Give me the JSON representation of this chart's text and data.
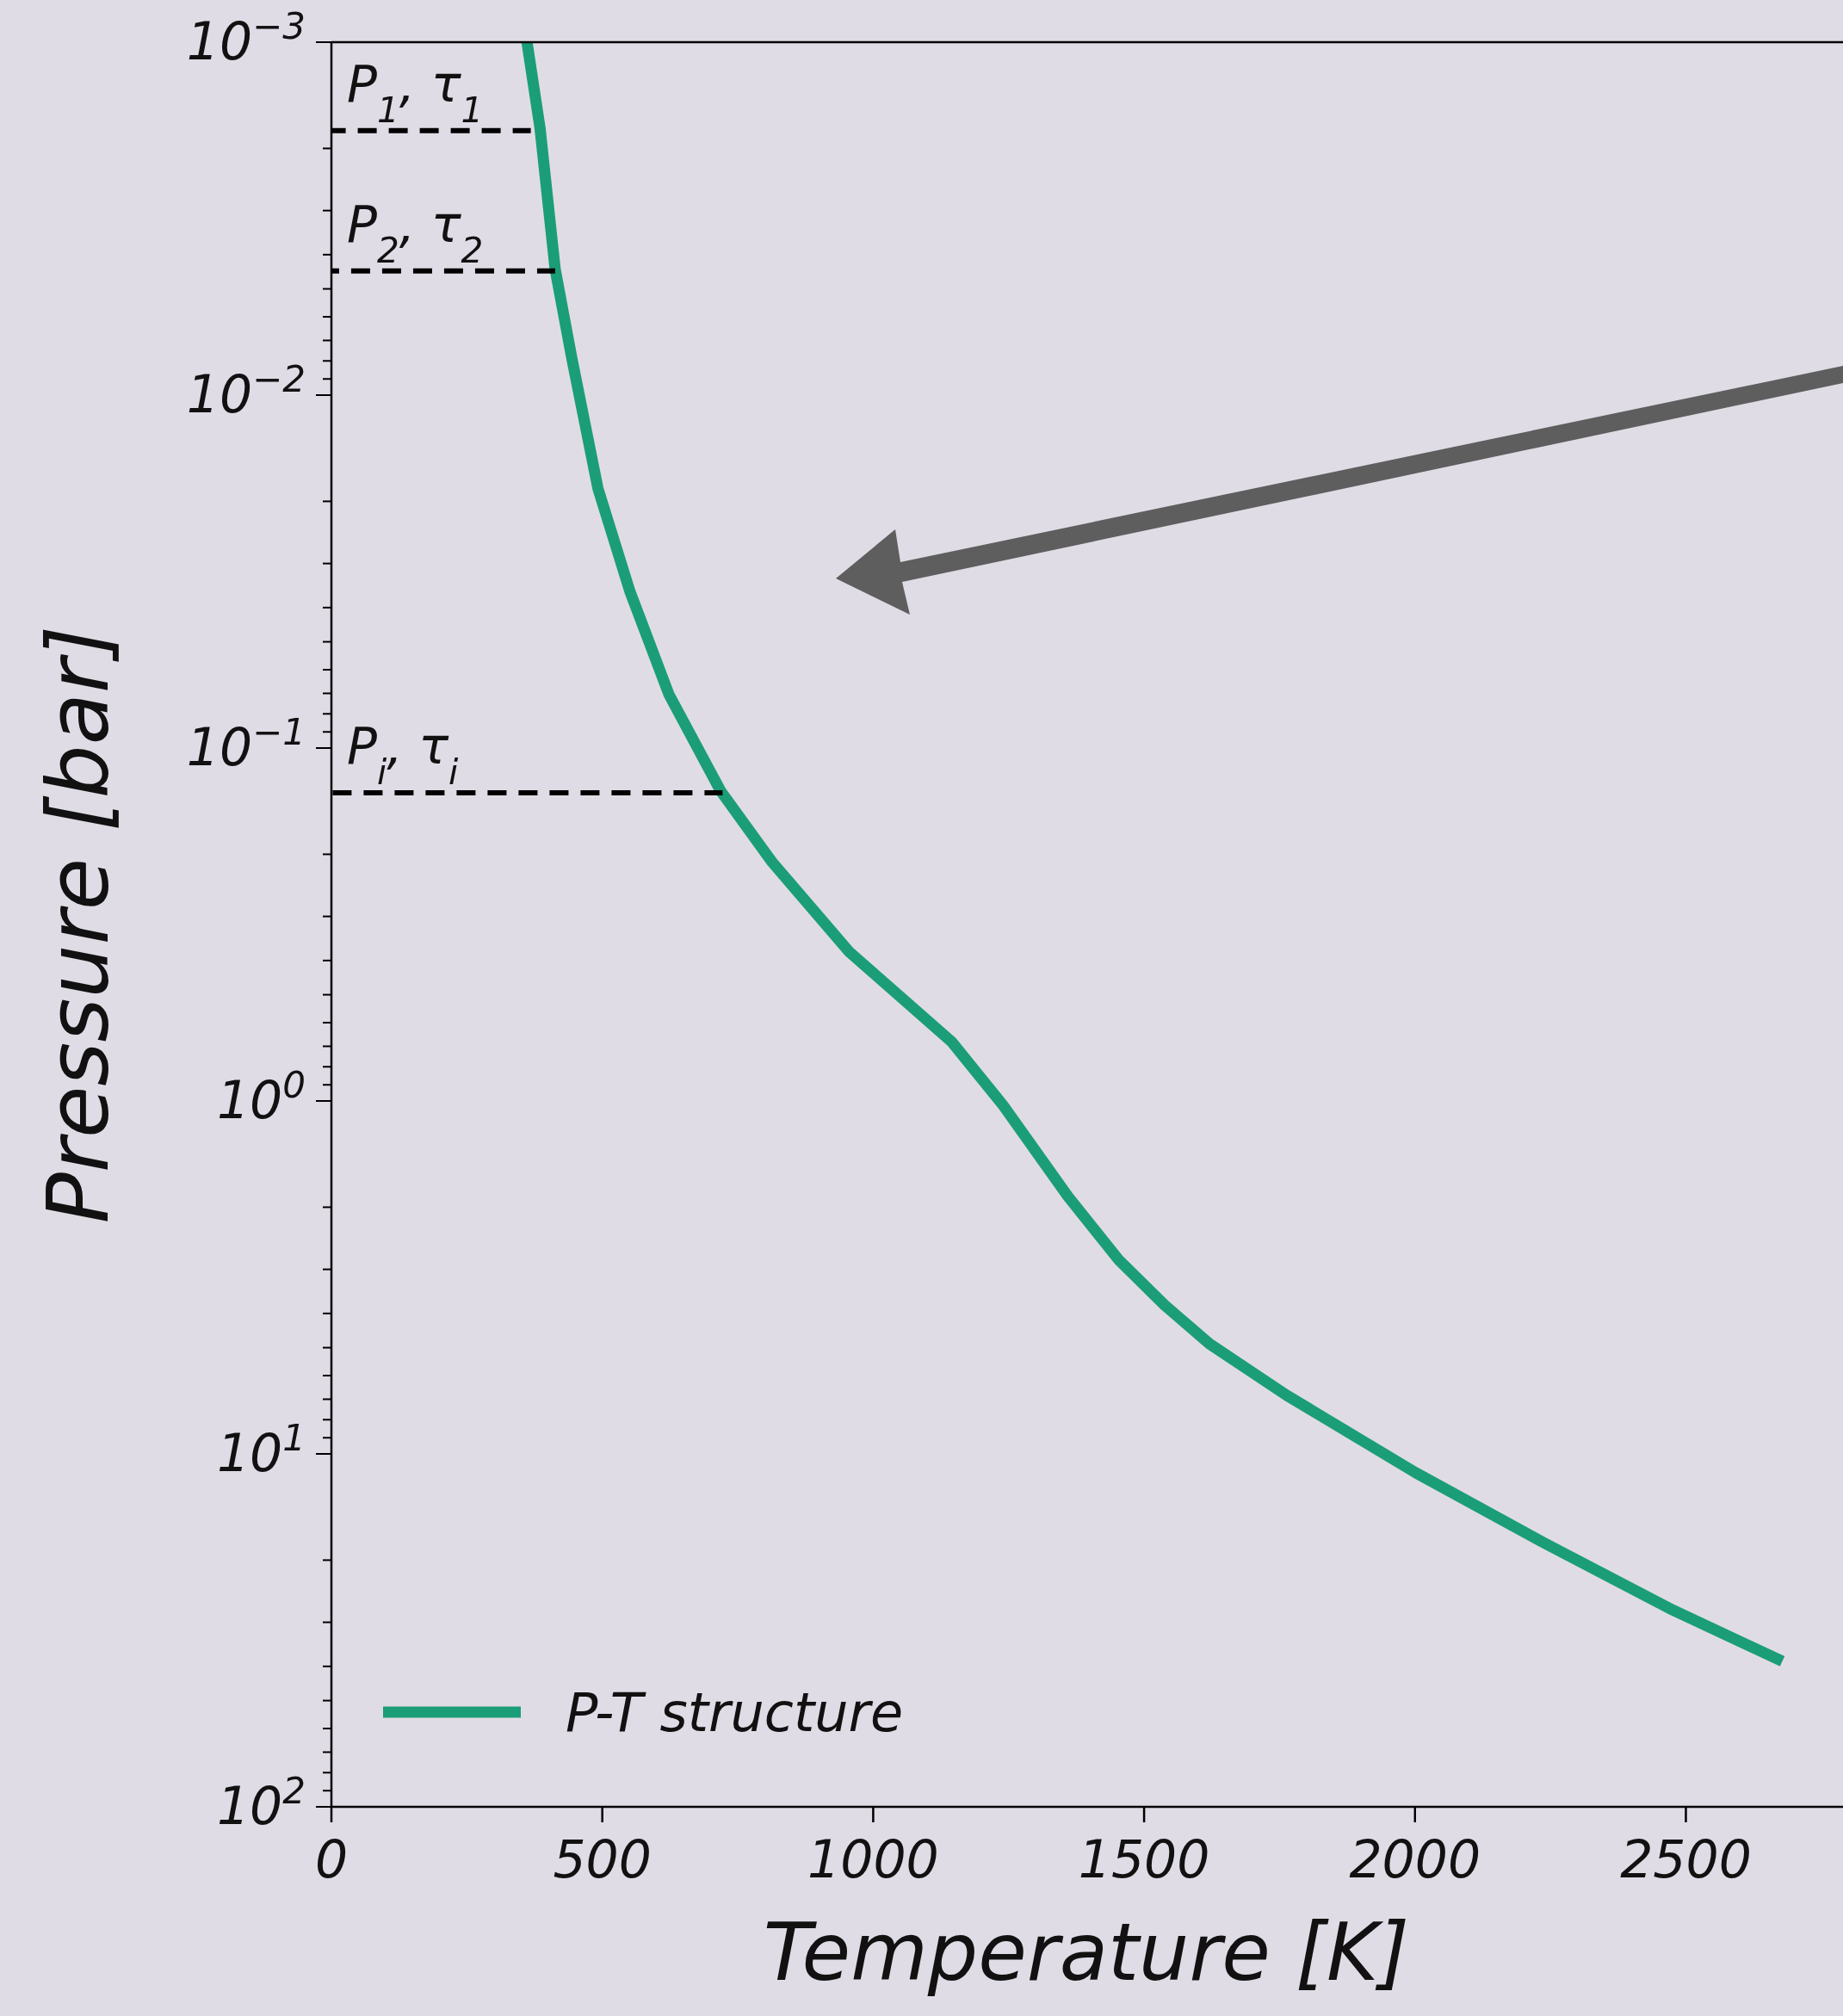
{
  "chart_data": {
    "type": "line",
    "xlabel": "Temperature [K]",
    "ylabel": "Pressure [bar]",
    "log": "y",
    "xlim": [
      0,
      2790
    ],
    "ylim": [
      100,
      0.001
    ],
    "xticks": [
      0,
      500,
      1000,
      1500,
      2000,
      2500
    ],
    "yticks": [
      {
        "value": 0.001,
        "label": "10$^{−3}$"
      },
      {
        "value": 0.002,
        "label": null
      },
      {
        "value": 0.003,
        "label": null
      },
      {
        "value": 0.004,
        "label": null
      },
      {
        "value": 0.005,
        "label": null
      },
      {
        "value": 0.006,
        "label": null
      },
      {
        "value": 0.007,
        "label": null
      },
      {
        "value": 0.008,
        "label": null
      },
      {
        "value": 0.009,
        "label": null
      },
      {
        "value": 0.01,
        "label": "10$^{−2}$"
      },
      {
        "value": 0.02,
        "label": null
      },
      {
        "value": 0.03,
        "label": null
      },
      {
        "value": 0.04,
        "label": null
      },
      {
        "value": 0.05,
        "label": null
      },
      {
        "value": 0.06,
        "label": null
      },
      {
        "value": 0.07,
        "label": null
      },
      {
        "value": 0.08,
        "label": null
      },
      {
        "value": 0.09,
        "label": null
      },
      {
        "value": 0.1,
        "label": "10$^{−1}$"
      },
      {
        "value": 0.2,
        "label": null
      },
      {
        "value": 0.3,
        "label": null
      },
      {
        "value": 0.4,
        "label": null
      },
      {
        "value": 0.5,
        "label": null
      },
      {
        "value": 0.6,
        "label": null
      },
      {
        "value": 0.7,
        "label": null
      },
      {
        "value": 0.8,
        "label": null
      },
      {
        "value": 0.9,
        "label": null
      },
      {
        "value": 1,
        "label": "10$^{0}$"
      },
      {
        "value": 2,
        "label": null
      },
      {
        "value": 3,
        "label": null
      },
      {
        "value": 4,
        "label": null
      },
      {
        "value": 5,
        "label": null
      },
      {
        "value": 6,
        "label": null
      },
      {
        "value": 7,
        "label": null
      },
      {
        "value": 8,
        "label": null
      },
      {
        "value": 9,
        "label": null
      },
      {
        "value": 10,
        "label": "10$^{1}$"
      },
      {
        "value": 20,
        "label": null
      },
      {
        "value": 30,
        "label": null
      },
      {
        "value": 40,
        "label": null
      },
      {
        "value": 50,
        "label": null
      },
      {
        "value": 60,
        "label": null
      },
      {
        "value": 70,
        "label": null
      },
      {
        "value": 80,
        "label": null
      },
      {
        "value": 90,
        "label": null
      },
      {
        "value": 100,
        "label": "10$^{2}$"
      }
    ],
    "legend": "bottom left",
    "series": [
      {
        "name": "P-T structure",
        "color": "#1b9e77",
        "line_style": "solid",
        "x": [
          361,
          385,
          413,
          444,
          492,
          551,
          623,
          718,
          813,
          955,
          1145,
          1240,
          1359,
          1454,
          1538,
          1621,
          1763,
          2001,
          2239,
          2476,
          2678
        ],
        "values": [
          0.001,
          0.00175,
          0.0044,
          0.0079,
          0.0184,
          0.036,
          0.0705,
          0.132,
          0.21,
          0.377,
          0.68,
          1.03,
          1.86,
          2.83,
          3.79,
          4.88,
          6.82,
          11.3,
          17.9,
          27.7,
          38.7
        ]
      },
      {
        "color": "#000000",
        "line_style": "dashed",
        "x": [
          0,
          368
        ],
        "values": [
          0.00178,
          0.00178
        ]
      },
      {
        "color": "#000000",
        "line_style": "dashed",
        "x": [
          0,
          413
        ],
        "values": [
          0.00445,
          0.00445
        ]
      },
      {
        "color": "#000000",
        "line_style": "dashed",
        "x": [
          0,
          722
        ],
        "values": [
          0.134,
          0.134
        ]
      }
    ],
    "annotations": [
      {
        "text": "P$_{1}$, τ$_{1}$",
        "y": 0.00178
      },
      {
        "text": "P$_{2}$, τ$_{2}$",
        "y": 0.00445
      },
      {
        "text": "P$_{i}$, τ$_{i}$",
        "y": 0.134
      }
    ]
  }
}
